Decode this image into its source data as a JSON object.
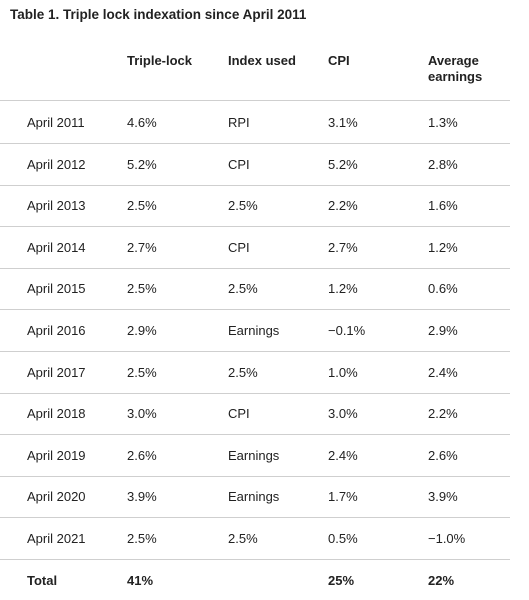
{
  "header": {
    "title": "Table 1. Triple lock indexation since April 2011"
  },
  "table": {
    "columns": [
      "Triple-lock",
      "Index used",
      "CPI",
      "Average earnings"
    ],
    "rows": [
      [
        "April 2011",
        "4.6%",
        "RPI",
        "3.1%",
        "1.3%"
      ],
      [
        "April 2012",
        "5.2%",
        "CPI",
        "5.2%",
        "2.8%"
      ],
      [
        "April 2013",
        "2.5%",
        "2.5%",
        "2.2%",
        "1.6%"
      ],
      [
        "April 2014",
        "2.7%",
        "CPI",
        "2.7%",
        "1.2%"
      ],
      [
        "April 2015",
        "2.5%",
        "2.5%",
        "1.2%",
        "0.6%"
      ],
      [
        "April 2016",
        "2.9%",
        "Earnings",
        "−0.1%",
        "2.9%"
      ],
      [
        "April 2017",
        "2.5%",
        "2.5%",
        "1.0%",
        "2.4%"
      ],
      [
        "April 2018",
        "3.0%",
        "CPI",
        "3.0%",
        "2.2%"
      ],
      [
        "April 2019",
        "2.6%",
        "Earnings",
        "2.4%",
        "2.6%"
      ],
      [
        "April 2020",
        "3.9%",
        "Earnings",
        "1.7%",
        "3.9%"
      ],
      [
        "April 2021",
        "2.5%",
        "2.5%",
        "0.5%",
        "−1.0%"
      ]
    ],
    "total": {
      "label": "Total",
      "triple_lock": "41%",
      "cpi": "25%",
      "average_earnings": "22%"
    }
  }
}
